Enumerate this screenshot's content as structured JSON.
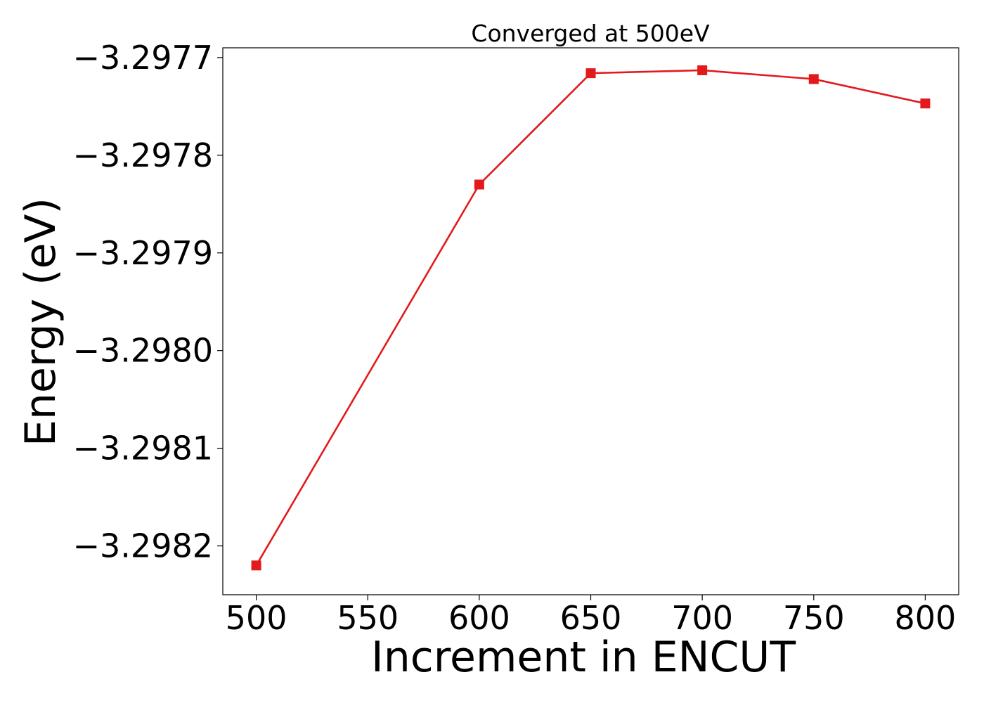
{
  "chart_data": {
    "type": "line",
    "title": "Converged at 500eV",
    "xlabel": "Increment in ENCUT",
    "ylabel": "Energy (eV)",
    "x": [
      500,
      600,
      650,
      700,
      750,
      800
    ],
    "series": [
      {
        "values": [
          -3.29822,
          -3.29783,
          -3.297716,
          -3.297713,
          -3.297722,
          -3.297747
        ],
        "color": "#e31a1c",
        "marker": "square"
      }
    ],
    "xlim": [
      485,
      815
    ],
    "ylim": [
      -3.29825,
      -3.29769
    ],
    "xticks": [
      500,
      550,
      600,
      650,
      700,
      750,
      800
    ],
    "xtick_labels": [
      "500",
      "550",
      "600",
      "650",
      "700",
      "750",
      "800"
    ],
    "yticks": [
      -3.2982,
      -3.2981,
      -3.298,
      -3.2979,
      -3.2978,
      -3.2977
    ],
    "ytick_labels": [
      "−3.2982",
      "−3.2981",
      "−3.2980",
      "−3.2979",
      "−3.2978",
      "−3.2977"
    ],
    "grid": false,
    "legend": "none"
  }
}
